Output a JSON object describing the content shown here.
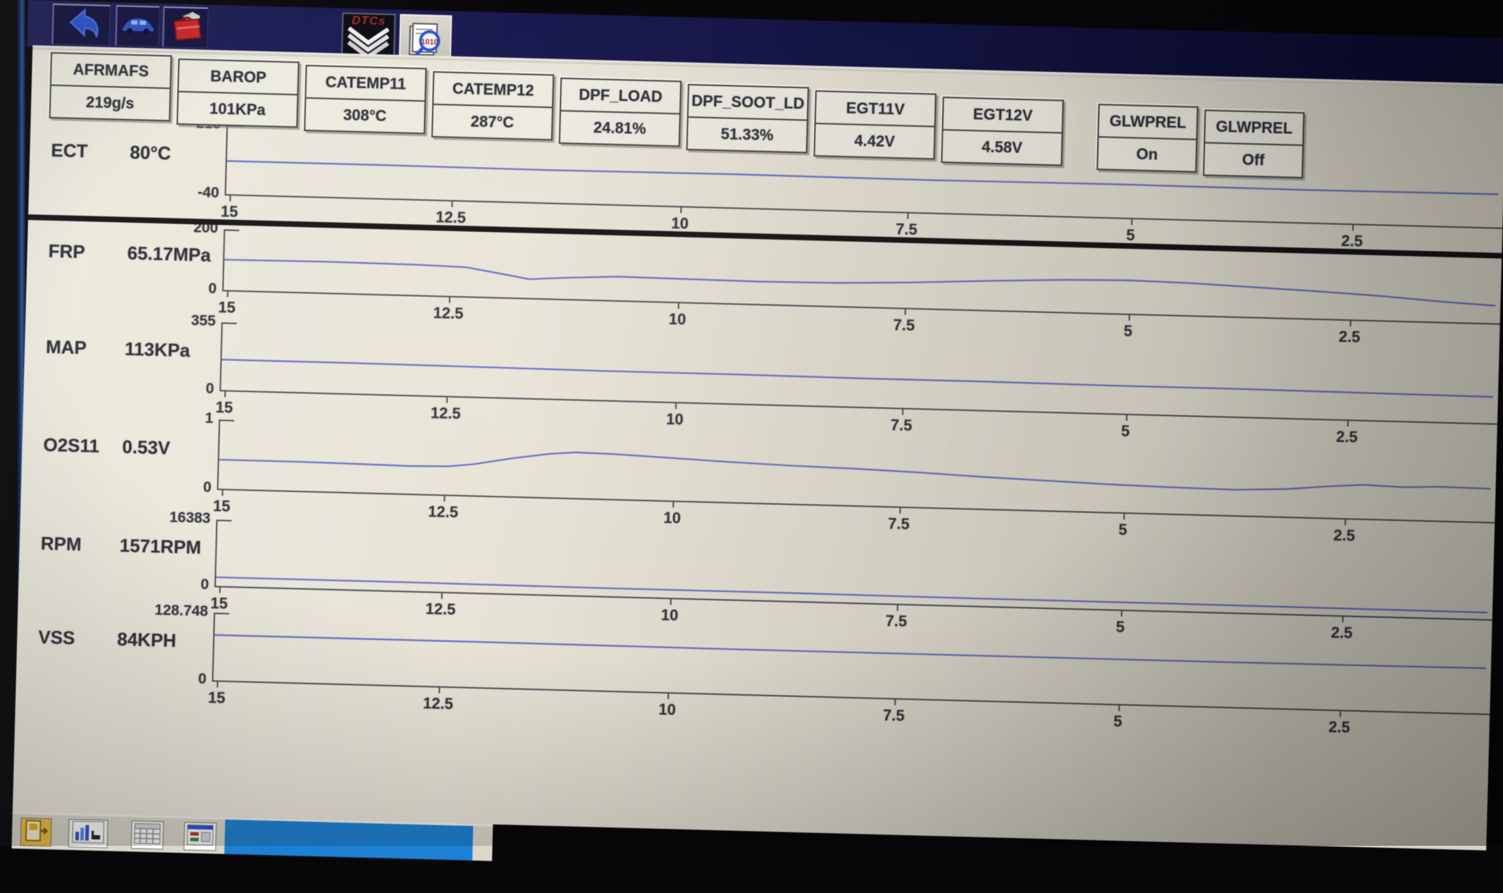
{
  "toolbar": {
    "dtcs_tab_label": "DTCs",
    "datalog_icon_text": "1010"
  },
  "params": [
    {
      "label": "AFRMAFS",
      "value": "219g/s"
    },
    {
      "label": "BAROP",
      "value": "101KPa"
    },
    {
      "label": "CATEMP11",
      "value": "308°C"
    },
    {
      "label": "CATEMP12",
      "value": "287°C"
    },
    {
      "label": "DPF_LOAD",
      "value": "24.81%"
    },
    {
      "label": "DPF_SOOT_LD",
      "value": "51.33%"
    },
    {
      "label": "EGT11V",
      "value": "4.42V"
    },
    {
      "label": "EGT12V",
      "value": "4.58V"
    },
    {
      "label": "GLWPREL",
      "value": "On"
    },
    {
      "label": "GLWPREL",
      "value": "Off"
    }
  ],
  "xticks": [
    "15",
    "12.5",
    "10",
    "7.5",
    "5",
    "2.5"
  ],
  "graphs": [
    {
      "name": "ECT",
      "value": "80°C",
      "ymax": "215",
      "ymin": "-40",
      "points": [
        [
          0,
          52
        ],
        [
          12,
          52
        ],
        [
          25,
          53
        ],
        [
          40,
          52
        ],
        [
          55,
          53
        ],
        [
          70,
          52
        ],
        [
          85,
          53
        ],
        [
          100,
          52
        ]
      ]
    },
    {
      "name": "FRP",
      "value": "65.17MPa",
      "ymax": "200",
      "ymin": "0",
      "points": [
        [
          0,
          50
        ],
        [
          8,
          49
        ],
        [
          15,
          50
        ],
        [
          19,
          52
        ],
        [
          22,
          62
        ],
        [
          24,
          69
        ],
        [
          27,
          65
        ],
        [
          31,
          61
        ],
        [
          36,
          62
        ],
        [
          42,
          63
        ],
        [
          48,
          62
        ],
        [
          54,
          58
        ],
        [
          60,
          52
        ],
        [
          66,
          47
        ],
        [
          71,
          45
        ],
        [
          76,
          47
        ],
        [
          81,
          51
        ],
        [
          86,
          55
        ],
        [
          91,
          60
        ],
        [
          96,
          67
        ],
        [
          100,
          71
        ]
      ]
    },
    {
      "name": "MAP",
      "value": "113KPa",
      "ymax": "355",
      "ymin": "0",
      "points": [
        [
          0,
          55
        ],
        [
          10,
          55
        ],
        [
          20,
          56
        ],
        [
          30,
          57
        ],
        [
          40,
          57
        ],
        [
          50,
          58
        ],
        [
          60,
          58
        ],
        [
          70,
          59
        ],
        [
          80,
          59
        ],
        [
          90,
          60
        ],
        [
          100,
          61
        ]
      ]
    },
    {
      "name": "O2S11",
      "value": "0.53V",
      "ymax": "1",
      "ymin": "0",
      "points": [
        [
          0,
          58
        ],
        [
          6,
          58
        ],
        [
          11,
          59
        ],
        [
          15,
          60
        ],
        [
          18,
          59
        ],
        [
          20,
          55
        ],
        [
          23,
          45
        ],
        [
          26,
          37
        ],
        [
          28,
          34
        ],
        [
          31,
          35
        ],
        [
          35,
          38
        ],
        [
          40,
          42
        ],
        [
          45,
          45
        ],
        [
          50,
          47
        ],
        [
          55,
          50
        ],
        [
          60,
          54
        ],
        [
          65,
          57
        ],
        [
          70,
          60
        ],
        [
          75,
          62
        ],
        [
          80,
          63
        ],
        [
          84,
          60
        ],
        [
          87,
          55
        ],
        [
          90,
          51
        ],
        [
          93,
          53
        ],
        [
          96,
          51
        ],
        [
          100,
          52
        ]
      ]
    },
    {
      "name": "RPM",
      "value": "1571RPM",
      "ymax": "16383",
      "ymin": "0",
      "points": [
        [
          0,
          87
        ],
        [
          15,
          87
        ],
        [
          30,
          88
        ],
        [
          45,
          88
        ],
        [
          60,
          89
        ],
        [
          75,
          89
        ],
        [
          100,
          90
        ]
      ]
    },
    {
      "name": "VSS",
      "value": "84KPH",
      "ymax": "128.748",
      "ymin": "0",
      "points": [
        [
          0,
          33
        ],
        [
          20,
          33
        ],
        [
          40,
          34
        ],
        [
          60,
          34
        ],
        [
          80,
          34
        ],
        [
          100,
          33
        ]
      ]
    }
  ],
  "chart_data": {
    "type": "line",
    "x_ticks": [
      15,
      12.5,
      10,
      7.5,
      5,
      2.5
    ],
    "legend_position": "left",
    "grid": false,
    "series": [
      {
        "name": "ECT",
        "current": 80,
        "unit": "°C",
        "y_range": [
          -40,
          215
        ]
      },
      {
        "name": "FRP",
        "current": 65.17,
        "unit": "MPa",
        "y_range": [
          0,
          200
        ]
      },
      {
        "name": "MAP",
        "current": 113,
        "unit": "KPa",
        "y_range": [
          0,
          355
        ]
      },
      {
        "name": "O2S11",
        "current": 0.53,
        "unit": "V",
        "y_range": [
          0,
          1
        ]
      },
      {
        "name": "RPM",
        "current": 1571,
        "unit": "RPM",
        "y_range": [
          0,
          16383
        ]
      },
      {
        "name": "VSS",
        "current": 84,
        "unit": "KPH",
        "y_range": [
          0,
          128.748
        ]
      }
    ]
  },
  "colors": {
    "trace": "#5a63c2",
    "taskbar_blue": "#1d80d2",
    "topbar_navy": "#17174b",
    "window_beige": "#e6e2d5"
  }
}
